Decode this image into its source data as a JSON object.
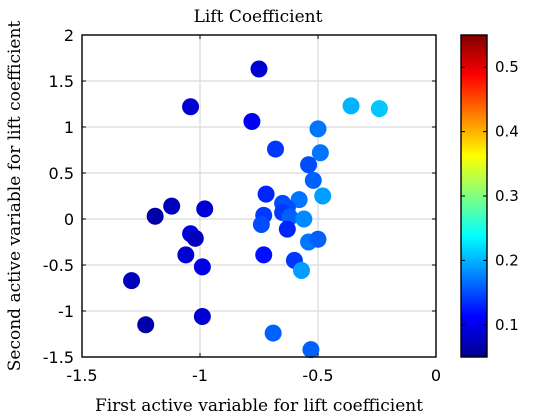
{
  "chart_data": {
    "type": "scatter",
    "title": "Lift Coefficient",
    "xlabel": "First active variable for lift coefficient",
    "ylabel": "Second active variable for lift coefficient",
    "xlim": [
      -1.5,
      0
    ],
    "ylim": [
      -1.5,
      2
    ],
    "xticks": [
      -1.5,
      -1,
      -0.5,
      0
    ],
    "yticks": [
      -1.5,
      -1,
      -0.5,
      0,
      0.5,
      1,
      1.5,
      2
    ],
    "xtick_labels": [
      "-1.5",
      "-1",
      "-0.5",
      "0"
    ],
    "ytick_labels": [
      "-1.5",
      "-1",
      "-0.5",
      "0",
      "0.5",
      "1",
      "1.5",
      "2"
    ],
    "grid": true,
    "colormap": "jet",
    "colorbar": {
      "limits": [
        0.05,
        0.55
      ],
      "ticks": [
        0.1,
        0.2,
        0.3,
        0.4,
        0.5
      ],
      "tick_labels": [
        "0.1",
        "0.2",
        "0.3",
        "0.4",
        "0.5"
      ],
      "location": "right"
    },
    "points": [
      {
        "x": -0.75,
        "y": 1.63,
        "c": 0.09
      },
      {
        "x": -1.04,
        "y": 1.22,
        "c": 0.09
      },
      {
        "x": -0.78,
        "y": 1.06,
        "c": 0.11
      },
      {
        "x": -0.36,
        "y": 1.23,
        "c": 0.2
      },
      {
        "x": -0.24,
        "y": 1.2,
        "c": 0.21
      },
      {
        "x": -0.5,
        "y": 0.98,
        "c": 0.17
      },
      {
        "x": -0.68,
        "y": 0.76,
        "c": 0.14
      },
      {
        "x": -0.49,
        "y": 0.72,
        "c": 0.17
      },
      {
        "x": -0.54,
        "y": 0.59,
        "c": 0.15
      },
      {
        "x": -0.52,
        "y": 0.42,
        "c": 0.16
      },
      {
        "x": -0.48,
        "y": 0.25,
        "c": 0.19
      },
      {
        "x": -0.58,
        "y": 0.21,
        "c": 0.17
      },
      {
        "x": -0.72,
        "y": 0.27,
        "c": 0.13
      },
      {
        "x": -0.65,
        "y": 0.17,
        "c": 0.15
      },
      {
        "x": -0.63,
        "y": 0.12,
        "c": 0.15
      },
      {
        "x": -0.73,
        "y": 0.04,
        "c": 0.14
      },
      {
        "x": -0.65,
        "y": 0.07,
        "c": 0.14
      },
      {
        "x": -0.62,
        "y": 0.02,
        "c": 0.16
      },
      {
        "x": -0.56,
        "y": 0.0,
        "c": 0.18
      },
      {
        "x": -0.74,
        "y": -0.06,
        "c": 0.15
      },
      {
        "x": -0.63,
        "y": -0.11,
        "c": 0.13
      },
      {
        "x": -0.54,
        "y": -0.25,
        "c": 0.17
      },
      {
        "x": -0.5,
        "y": -0.22,
        "c": 0.16
      },
      {
        "x": -0.6,
        "y": -0.45,
        "c": 0.14
      },
      {
        "x": -0.57,
        "y": -0.56,
        "c": 0.19
      },
      {
        "x": -0.73,
        "y": -0.39,
        "c": 0.12
      },
      {
        "x": -0.69,
        "y": -1.24,
        "c": 0.16
      },
      {
        "x": -0.53,
        "y": -1.42,
        "c": 0.16
      },
      {
        "x": -1.12,
        "y": 0.14,
        "c": 0.08
      },
      {
        "x": -1.19,
        "y": 0.03,
        "c": 0.07
      },
      {
        "x": -0.98,
        "y": 0.11,
        "c": 0.09
      },
      {
        "x": -1.04,
        "y": -0.16,
        "c": 0.1
      },
      {
        "x": -1.02,
        "y": -0.21,
        "c": 0.08
      },
      {
        "x": -1.06,
        "y": -0.39,
        "c": 0.09
      },
      {
        "x": -0.99,
        "y": -0.52,
        "c": 0.1
      },
      {
        "x": -1.29,
        "y": -0.67,
        "c": 0.08
      },
      {
        "x": -1.23,
        "y": -1.15,
        "c": 0.07
      },
      {
        "x": -0.99,
        "y": -1.06,
        "c": 0.09
      }
    ]
  }
}
